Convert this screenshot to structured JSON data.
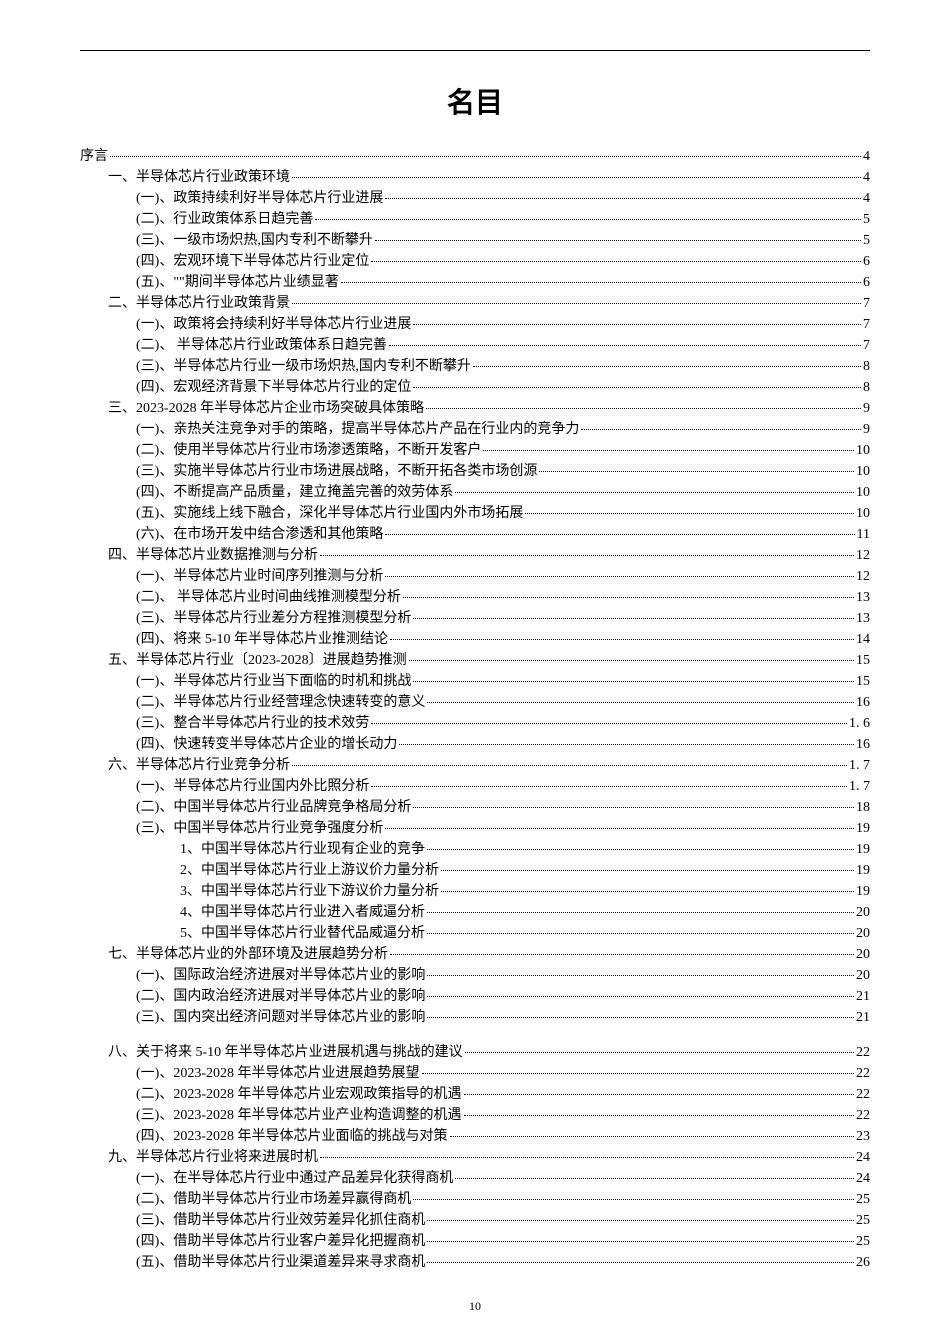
{
  "title": "名目",
  "page_number": "10",
  "entries": [
    {
      "level": 0,
      "text": "序言",
      "page": "4"
    },
    {
      "level": 1,
      "text": "一、半导体芯片行业政策环境",
      "page": "4"
    },
    {
      "level": 2,
      "text": "(一)、政策持续利好半导体芯片行业进展",
      "page": "4"
    },
    {
      "level": 2,
      "text": "(二)、行业政策体系日趋完善",
      "page": "5"
    },
    {
      "level": 2,
      "text": "(三)、一级市场炽热,国内专利不断攀升",
      "page": "5"
    },
    {
      "level": 2,
      "text": "(四)、宏观环境下半导体芯片行业定位",
      "page": "6"
    },
    {
      "level": 2,
      "text": "(五)、\"\"期间半导体芯片业绩显著",
      "page": "6"
    },
    {
      "level": 1,
      "text": "二、半导体芯片行业政策背景",
      "page": "7"
    },
    {
      "level": 2,
      "text": "(一)、政策将会持续利好半导体芯片行业进展",
      "page": "7"
    },
    {
      "level": 2,
      "text": "(二)、 半导体芯片行业政策体系日趋完善",
      "page": "7"
    },
    {
      "level": 2,
      "text": "(三)、半导体芯片行业一级市场炽热,国内专利不断攀升",
      "page": "8"
    },
    {
      "level": 2,
      "text": "(四)、宏观经济背景下半导体芯片行业的定位",
      "page": "8"
    },
    {
      "level": 1,
      "text": "三、2023-2028 年半导体芯片企业市场突破具体策略",
      "page": "9"
    },
    {
      "level": 2,
      "text": "(一)、亲热关注竞争对手的策略，提高半导体芯片产品在行业内的竞争力",
      "page": "9"
    },
    {
      "level": 2,
      "text": "(二)、使用半导体芯片行业市场渗透策略，不断开发客户",
      "page": "10"
    },
    {
      "level": 2,
      "text": "(三)、实施半导体芯片行业市场进展战略，不断开拓各类市场创源",
      "page": "10"
    },
    {
      "level": 2,
      "text": "(四)、不断提高产品质量，建立掩盖完善的效劳体系",
      "page": "10"
    },
    {
      "level": 2,
      "text": "(五)、实施线上线下融合，深化半导体芯片行业国内外市场拓展",
      "page": "10"
    },
    {
      "level": 2,
      "text": "(六)、在市场开发中结合渗透和其他策略",
      "page": "11"
    },
    {
      "level": 1,
      "text": "四、半导体芯片业数据推测与分析",
      "page": "12"
    },
    {
      "level": 2,
      "text": "(一)、半导体芯片业时间序列推测与分析",
      "page": "12"
    },
    {
      "level": 2,
      "text": "(二)、 半导体芯片业时间曲线推测模型分析",
      "page": "13"
    },
    {
      "level": 2,
      "text": "(三)、半导体芯片行业差分方程推测模型分析",
      "page": "13"
    },
    {
      "level": 2,
      "text": "(四)、将来 5-10 年半导体芯片业推测结论",
      "page": "14"
    },
    {
      "level": 1,
      "text": "五、半导体芯片行业〔2023-2028〕进展趋势推测",
      "page": "15"
    },
    {
      "level": 2,
      "text": "(一)、半导体芯片行业当下面临的时机和挑战",
      "page": "15"
    },
    {
      "level": 2,
      "text": "(二)、半导体芯片行业经营理念快速转变的意义",
      "page": "16"
    },
    {
      "level": 2,
      "text": "(三)、整合半导体芯片行业的技术效劳 ",
      "page": "1. 6"
    },
    {
      "level": 2,
      "text": "(四)、快速转变半导体芯片企业的增长动力",
      "page": "16"
    },
    {
      "level": 1,
      "text": "六、半导体芯片行业竞争分析 ",
      "page": "1. 7"
    },
    {
      "level": 2,
      "text": "(一)、半导体芯片行业国内外比照分析 ",
      "page": "1. 7"
    },
    {
      "level": 2,
      "text": "(二)、中国半导体芯片行业品牌竞争格局分析",
      "page": "18"
    },
    {
      "level": 2,
      "text": "(三)、中国半导体芯片行业竞争强度分析",
      "page": "19"
    },
    {
      "level": 3,
      "text": "1、中国半导体芯片行业现有企业的竞争",
      "page": "19"
    },
    {
      "level": 3,
      "text": "2、中国半导体芯片行业上游议价力量分析",
      "page": "19"
    },
    {
      "level": 3,
      "text": "3、中国半导体芯片行业下游议价力量分析",
      "page": "19"
    },
    {
      "level": 3,
      "text": "4、中国半导体芯片行业进入者威逼分析",
      "page": "20"
    },
    {
      "level": 3,
      "text": "5、中国半导体芯片行业替代品威逼分析",
      "page": "20"
    },
    {
      "level": 1,
      "text": "七、半导体芯片业的外部环境及进展趋势分析",
      "page": "20"
    },
    {
      "level": 2,
      "text": "(一)、国际政治经济进展对半导体芯片业的影响",
      "page": "20"
    },
    {
      "level": 2,
      "text": "(二)、国内政治经济进展对半导体芯片业的影响",
      "page": "21"
    },
    {
      "level": 2,
      "text": "(三)、国内突出经济问题对半导体芯片业的影响",
      "page": "21"
    },
    {
      "level": 1,
      "text": "八、关于将来 5-10 年半导体芯片业进展机遇与挑战的建议",
      "page": "22",
      "gap_before": true
    },
    {
      "level": 2,
      "text": "(一)、2023-2028 年半导体芯片业进展趋势展望",
      "page": "22"
    },
    {
      "level": 2,
      "text": "(二)、2023-2028 年半导体芯片业宏观政策指导的机遇",
      "page": "22"
    },
    {
      "level": 2,
      "text": "(三)、2023-2028 年半导体芯片业产业构造调整的机遇",
      "page": "22"
    },
    {
      "level": 2,
      "text": "(四)、2023-2028 年半导体芯片业面临的挑战与对策",
      "page": "23"
    },
    {
      "level": 1,
      "text": "九、半导体芯片行业将来进展时机",
      "page": "24"
    },
    {
      "level": 2,
      "text": "(一)、在半导体芯片行业中通过产品差异化获得商机",
      "page": "24"
    },
    {
      "level": 2,
      "text": "(二)、借助半导体芯片行业市场差异赢得商机",
      "page": "25"
    },
    {
      "level": 2,
      "text": "(三)、借助半导体芯片行业效劳差异化抓住商机",
      "page": "25"
    },
    {
      "level": 2,
      "text": "(四)、借助半导体芯片行业客户差异化把握商机",
      "page": "25"
    },
    {
      "level": 2,
      "text": "(五)、借助半导体芯片行业渠道差异来寻求商机",
      "page": "26"
    }
  ]
}
